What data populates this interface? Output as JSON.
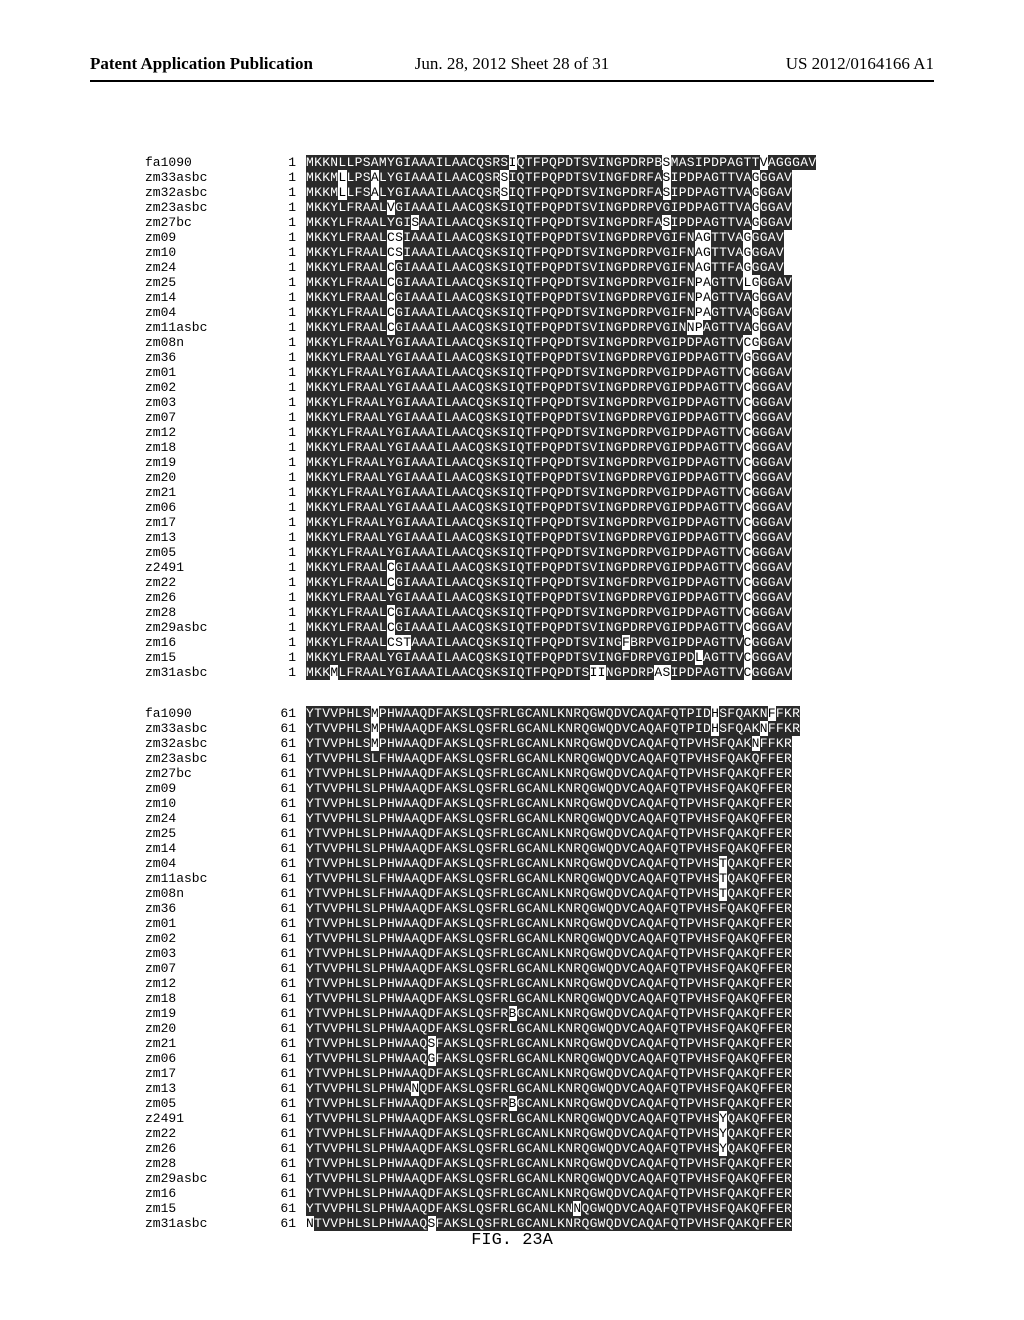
{
  "header": {
    "left": "Patent Application Publication",
    "center": "Jun. 28, 2012  Sheet 28 of 31",
    "right": "US 2012/0164166 A1"
  },
  "figure_label": "FIG. 23A",
  "alignment": {
    "font": "Courier New",
    "fontsize_pt": 10,
    "highlight_bg": "#2a2a2a",
    "highlight_fg": "#ffffff",
    "normal_bg": "#ffffff",
    "normal_fg": "#000000",
    "blocks": [
      {
        "start": 1,
        "rows": [
          {
            "id": "fa1090",
            "pos": 1,
            "seq": "MKKNLLPSAMYGIAAAILAACQSRSIQTFPQPDTSVINGPDRPBSMASIPDPAGTTVAGGGAV",
            "mask": "1111111111111111111111111011111111111111111101111111111101111"
          },
          {
            "id": "zm33asbc",
            "pos": 1,
            "seq": "MKKMLLPSALYGIAAAILAACQSRSIQTFPQPDTSVINGFDRFASIPDPAGTTVAGGGAV",
            "mask": "111101110111111111111111011111111111111111110111111111101111"
          },
          {
            "id": "zm32asbc",
            "pos": 1,
            "seq": "MKKMLLFSALYGIAAAILAACQSRSIQTFPQPDTSVINGPDRFASIPDPAGTTVAGGGAV",
            "mask": "111101110111111111111111011111111111111111110111111111101111"
          },
          {
            "id": "zm23asbc",
            "pos": 1,
            "seq": "MKKYLFRAALVGIAAAILAACQSKSIQTFPQPDTSVINGPDRPVGIPDPAGTTVAGGGAV",
            "mask": "111111111101111111111111111111111111111111111111111111101111"
          },
          {
            "id": "zm27bc",
            "pos": 1,
            "seq": "MKKYLFRAALYGISAAILAACQSKSIQTFPQPDTSVINGPDRFASIPDPAGTTVAGGGAV",
            "mask": "111111111111101111111111111111111111111111110111111111101111"
          },
          {
            "id": "zm09",
            "pos": 1,
            "seq": "MKKYLFRAALCSIAAAILAACQSKSIQTFPQPDTSVINGPDRPVGIFNAGTTVAGGGAV",
            "mask": "11111111110011111111111111111111111111111111111100111101111"
          },
          {
            "id": "zm10",
            "pos": 1,
            "seq": "MKKYLFRAALCSIAAAILAACQSKSIQTFPQPDTSVINGPDRPVGIFNAGTTVAGGGAV",
            "mask": "11111111110011111111111111111111111111111111111100111101111"
          },
          {
            "id": "zm24",
            "pos": 1,
            "seq": "MKKYLFRAALCGIAAAILAACQSKSIQTFPQPDTSVINGPDRPVGIFNAGTTFAGGGAV",
            "mask": "11111111110111111111111111111111111111111111111100111101111"
          },
          {
            "id": "zm25",
            "pos": 1,
            "seq": "MKKYLFRAALCGIAAAILAACQSKSIQTFPQPDTSVINGPDRPVGIFNPAGTTVLGGGAV",
            "mask": "111111111101111111111111111111111111111111111111001111001111"
          },
          {
            "id": "zm14",
            "pos": 1,
            "seq": "MKKYLFRAALCGIAAAILAACQSKSIQTFPQPDTSVINGPDRPVGIFNPAGTTVAGGGAV",
            "mask": "111111111101111111111111111111111111111111111111001111101111"
          },
          {
            "id": "zm04",
            "pos": 1,
            "seq": "MKKYLFRAALCGIAAAILAACQSKSIQTFPQPDTSVINGPDRPVGIFNPAGTTVAGGGAV",
            "mask": "111111111101111111111111111111111111111111111111001111101111"
          },
          {
            "id": "zm11asbc",
            "pos": 1,
            "seq": "MKKYLFRAALCGIAAAILAACQSKSIQTFPQPDTSVINGPDRPVGINNPAGTTVAGGGAV",
            "mask": "111111111101111111111111111111111111111111111110011111101111"
          },
          {
            "id": "zm08n",
            "pos": 1,
            "seq": "MKKYLFRAALYGIAAAILAACQSKSIQTFPQPDTSVINGPDRPVGIPDPAGTTVCGGGAV",
            "mask": "111111111111111111111111111111111111111111111111111111001111"
          },
          {
            "id": "zm36",
            "pos": 1,
            "seq": "MKKYLFRAALYGIAAAILAACQSKSIQTFPQPDTSVINGPDRPVGIPDPAGTTVGGGGAV",
            "mask": "111111111111111111111111111111111111111111111111111111011111"
          },
          {
            "id": "zm01",
            "pos": 1,
            "seq": "MKKYLFRAALYGIAAAILAACQSKSIQTFPQPDTSVINGPDRPVGIPDPAGTTVCGGGAV",
            "mask": "111111111111111111111111111111111111111111111111111111011111"
          },
          {
            "id": "zm02",
            "pos": 1,
            "seq": "MKKYLFRAALYGIAAAILAACQSKSIQTFPQPDTSVINGPDRPVGIPDPAGTTVCGGGAV",
            "mask": "111111111111111111111111111111111111111111111111111111011111"
          },
          {
            "id": "zm03",
            "pos": 1,
            "seq": "MKKYLFRAALYGIAAAILAACQSKSIQTFPQPDTSVINGPDRPVGIPDPAGTTVCGGGAV",
            "mask": "111111111111111111111111111111111111111111111111111111011111"
          },
          {
            "id": "zm07",
            "pos": 1,
            "seq": "MKKYLFRAALYGIAAAILAACQSKSIQTFPQPDTSVINGPDRPVGIPDPAGTTVCGGGAV",
            "mask": "111111111111111111111111111111111111111111111111111111011111"
          },
          {
            "id": "zm12",
            "pos": 1,
            "seq": "MKKYLFRAALYGIAAAILAACQSKSIQTFPQPDTSVINGPDRPVGIPDPAGTTVCGGGAV",
            "mask": "111111111111111111111111111111111111111111111111111111011111"
          },
          {
            "id": "zm18",
            "pos": 1,
            "seq": "MKKYLFRAALYGIAAAILAACQSKSIQTFPQPDTSVINGPDRPVGIPDPAGTTVCGGGAV",
            "mask": "111111111111111111111111111111111111111111111111111111011111"
          },
          {
            "id": "zm19",
            "pos": 1,
            "seq": "MKKYLFRAALYGIAAAILAACQSKSIQTFPQPDTSVINGPDRPVGIPDPAGTTVCGGGAV",
            "mask": "111111111111111111111111111111111111111111111111111111011111"
          },
          {
            "id": "zm20",
            "pos": 1,
            "seq": "MKKYLFRAALYGIAAAILAACQSKSIQTFPQPDTSVINGPDRPVGIPDPAGTTVCGGGAV",
            "mask": "111111111111111111111111111111111111111111111111111111011111"
          },
          {
            "id": "zm21",
            "pos": 1,
            "seq": "MKKYLFRAALYGIAAAILAACQSKSIQTFPQPDTSVINGPDRPVGIPDPAGTTVCGGGAV",
            "mask": "111111111111111111111111111111111111111111111111111111011111"
          },
          {
            "id": "zm06",
            "pos": 1,
            "seq": "MKKYLFRAALYGIAAAILAACQSKSIQTFPQPDTSVINGPDRPVGIPDPAGTTVCGGGAV",
            "mask": "111111111111111111111111111111111111111111111111111111011111"
          },
          {
            "id": "zm17",
            "pos": 1,
            "seq": "MKKYLFRAALYGIAAAILAACQSKSIQTFPQPDTSVINGPDRPVGIPDPAGTTVCGGGAV",
            "mask": "111111111111111111111111111111111111111111111111111111011111"
          },
          {
            "id": "zm13",
            "pos": 1,
            "seq": "MKKYLFRAALYGIAAAILAACQSKSIQTFPQPDTSVINGPDRPVGIPDPAGTTVCGGGAV",
            "mask": "111111111111111111111111111111111111111111111111111111011111"
          },
          {
            "id": "zm05",
            "pos": 1,
            "seq": "MKKYLFRAALYGIAAAILAACQSKSIQTFPQPDTSVINGPDRPVGIPDPAGTTVCGGGAV",
            "mask": "111111111111111111111111111111111111111111111111111111011111"
          },
          {
            "id": "z2491",
            "pos": 1,
            "seq": "MKKYLFRAALCGIAAAILAACQSKSIQTFPQPDTSVINGPDRPVGIPDPAGTTVCGGGAV",
            "mask": "111111111101111111111111111111111111111111111111111111011111"
          },
          {
            "id": "zm22",
            "pos": 1,
            "seq": "MKKYLFRAALCGIAAAILAACQSKSIQTFPQPDTSVINGFDRPVGIPDPAGTTVCGGGAV",
            "mask": "111111111101111111111111111111111111111111111111111111011111"
          },
          {
            "id": "zm26",
            "pos": 1,
            "seq": "MKKYLFRAALYGIAAAILAACQSKSIQTFPQPDTSVINGPDRPVGIPDPAGTTVCGGGAV",
            "mask": "111111111111111111111111111111111111111111111111111111011111"
          },
          {
            "id": "zm28",
            "pos": 1,
            "seq": "MKKYLFRAALCGIAAAILAACQSKSIQTFPQPDTSVINGPDRPVGIPDPAGTTVCGGGAV",
            "mask": "111111111101111111111111111111111111111111111111111111011111"
          },
          {
            "id": "zm29asbc",
            "pos": 1,
            "seq": "MKKYLFRAALCGIAAAILAACQSKSIQTFPQPDTSVINGPDRPVGIPDPAGTTVCGGGAV",
            "mask": "111111111101111111111111111111111111111111111111111111011111"
          },
          {
            "id": "zm16",
            "pos": 1,
            "seq": "MKKYLFRAALCSTAAAILAACQSKSIQTFPQPDTSVINGFBRPVGIPDPAGTTVCGGGAV",
            "mask": "111111111100011111111111111111111111111011111111111111011111"
          },
          {
            "id": "zm15",
            "pos": 1,
            "seq": "MKKYLFRAALYGIAAAILAACQSKSIQTFPQPDTSVINGFDRPVGIPDLAGTTVCGGGAV",
            "mask": "111111111111111111111111111111111111111111111111011111011111"
          },
          {
            "id": "zm31asbc",
            "pos": 1,
            "seq": "MKKMLFRAALYGIAAAILAACQSKSIQTFPQPDTSIINGPDRPASIPDPAGTTVCGGGAV",
            "mask": "111011111111111111111111111111111110011111100111111111011111"
          }
        ]
      },
      {
        "start": 61,
        "rows": [
          {
            "id": "fa1090",
            "pos": 61,
            "seq": "YTVVPHLSMPHWAAQDFAKSLQSFRLGCANLKNRQGWQDVCAQAFQTPIDHSFQAKNFFKR",
            "mask": "1111111101111111111111111111111111111111111111111101111110111"
          },
          {
            "id": "zm33asbc",
            "pos": 61,
            "seq": "YTVVPHLSMPHWAAQDFAKSLQSFRLGCANLKNRQGWQDVCAQAFQTPIDHSFQAKNFFKR",
            "mask": "1111111101111111111111111111111111111111111111111101111101111"
          },
          {
            "id": "zm32asbc",
            "pos": 61,
            "seq": "YTVVPHLSMPHWAAQDFAKSLQSFRLGCANLKNRQGWQDVCAQAFQTPVHSFQAKNFFKR",
            "mask": "111111110111111111111111111111111111111111111111111111101111"
          },
          {
            "id": "zm23asbc",
            "pos": 61,
            "seq": "YTVVPHLSLFHWAAQDFAKSLQSFRLGCANLKNRQGWQDVCAQAFQTPVHSFQAKQFFER",
            "mask": "111111111111111111111111111111111111111111111111111111111111"
          },
          {
            "id": "zm27bc",
            "pos": 61,
            "seq": "YTVVPHLSLPHWAAQDFAKSLQSFRLGCANLKNRQGWQDVCAQAFQTPVHSFQAKQFFER",
            "mask": "111111111111111111111111111111111111111111111111111111111111"
          },
          {
            "id": "zm09",
            "pos": 61,
            "seq": "YTVVPHLSLPHWAAQDFAKSLQSFRLGCANLKNRQGWQDVCAQAFQTPVHSFQAKQFFER",
            "mask": "111111111111111111111111111111111111111111111111111111111111"
          },
          {
            "id": "zm10",
            "pos": 61,
            "seq": "YTVVPHLSLPHWAAQDFAKSLQSFRLGCANLKNRQGWQDVCAQAFQTPVHSFQAKQFFER",
            "mask": "111111111111111111111111111111111111111111111111111111111111"
          },
          {
            "id": "zm24",
            "pos": 61,
            "seq": "YTVVPHLSLPHWAAQDFAKSLQSFRLGCANLKNRQGWQDVCAQAFQTPVHSFQAKQFFER",
            "mask": "111111111111111111111111111111111111111111111111111111111111"
          },
          {
            "id": "zm25",
            "pos": 61,
            "seq": "YTVVPHLSLPHWAAQDFAKSLQSFRLGCANLKNRQGWQDVCAQAFQTPVHSFQAKQFFER",
            "mask": "111111111111111111111111111111111111111111111111111111111111"
          },
          {
            "id": "zm14",
            "pos": 61,
            "seq": "YTVVPHLSLPHWAAQDFAKSLQSFRLGCANLKNRQGWQDVCAQAFQTPVHSFQAKQFFER",
            "mask": "111111111111111111111111111111111111111111111111111111111111"
          },
          {
            "id": "zm04",
            "pos": 61,
            "seq": "YTVVPHLSLPHWAAQDFAKSLQSFRLGCANLKNRQGWQDVCAQAFQTPVHSTQAKQFFER",
            "mask": "111111111111111111111111111111111111111111111111111011111111"
          },
          {
            "id": "zm11asbc",
            "pos": 61,
            "seq": "YTVVPHLSLFHWAAQDFAKSLQSFRLGCANLKNRQGWQDVCAQAFQTPVHSTQAKQFFER",
            "mask": "111111111111111111111111111111111111111111111111111011111111"
          },
          {
            "id": "zm08n",
            "pos": 61,
            "seq": "YTVVPHLSLFHWAAQDFAKSLQSFRLGCANLKNRQGWQDVCAQAFQTPVHSTQAKQFFER",
            "mask": "111111111111111111111111111111111111111111111111111011111111"
          },
          {
            "id": "zm36",
            "pos": 61,
            "seq": "YTVVPHLSLPHWAAQDFAKSLQSFRLGCANLKNRQGWQDVCAQAFQTPVHSFQAKQFFER",
            "mask": "111111111111111111111111111111111111111111111111111111111111"
          },
          {
            "id": "zm01",
            "pos": 61,
            "seq": "YTVVPHLSLPHWAAQDFAKSLQSFRLGCANLKNRQGWQDVCAQAFQTPVHSFQAKQFFER",
            "mask": "111111111111111111111111111111111111111111111111111111111111"
          },
          {
            "id": "zm02",
            "pos": 61,
            "seq": "YTVVPHLSLPHWAAQDFAKSLQSFRLGCANLKNRQGWQDVCAQAFQTPVHSFQAKQFFER",
            "mask": "111111111111111111111111111111111111111111111111111111111111"
          },
          {
            "id": "zm03",
            "pos": 61,
            "seq": "YTVVPHLSLPHWAAQDFAKSLQSFRLGCANLKNRQGWQDVCAQAFQTPVHSFQAKQFFER",
            "mask": "111111111111111111111111111111111111111111111111111111111111"
          },
          {
            "id": "zm07",
            "pos": 61,
            "seq": "YTVVPHLSLPHWAAQDFAKSLQSFRLGCANLKNRQGWQDVCAQAFQTPVHSFQAKQFFER",
            "mask": "111111111111111111111111111111111111111111111111111111111111"
          },
          {
            "id": "zm12",
            "pos": 61,
            "seq": "YTVVPHLSLPHWAAQDFAKSLQSFRLGCANLKNRQGWQDVCAQAFQTPVHSFQAKQFFER",
            "mask": "111111111111111111111111111111111111111111111111111111111111"
          },
          {
            "id": "zm18",
            "pos": 61,
            "seq": "YTVVPHLSLPHWAAQDFAKSLQSFRLGCANLKNRQGWQDVCAQAFQTPVHSFQAKQFFER",
            "mask": "111111111111111111111111111111111111111111111111111111111111"
          },
          {
            "id": "zm19",
            "pos": 61,
            "seq": "YTVVPHLSLPHWAAQDFAKSLQSFRBGCANLKNRQGWQDVCAQAFQTPVHSFQAKQFFER",
            "mask": "111111111111111111111111101111111111111111111111111111111111"
          },
          {
            "id": "zm20",
            "pos": 61,
            "seq": "YTVVPHLSLPHWAAQDFAKSLQSFRLGCANLKNRQGWQDVCAQAFQTPVHSFQAKQFFER",
            "mask": "111111111111111111111111111111111111111111111111111111111111"
          },
          {
            "id": "zm21",
            "pos": 61,
            "seq": "YTVVPHLSLPHWAAQSFAKSLQSFRLGCANLKNRQGWQDVCAQAFQTPVHSFQAKQFFER",
            "mask": "111111111111111011111111111111111111111111111111111111111111"
          },
          {
            "id": "zm06",
            "pos": 61,
            "seq": "YTVVPHLSLPHWAAQGFAKSLQSFRLGCANLKNRQGWQDVCAQAFQTPVHSFQAKQFFER",
            "mask": "111111111111111011111111111111111111111111111111111111111111"
          },
          {
            "id": "zm17",
            "pos": 61,
            "seq": "YTVVPHLSLPHWAAQDFAKSLQSFRLGCANLKNRQGWQDVCAQAFQTPVHSFQAKQFFER",
            "mask": "111111111111111111111111111111111111111111111111111111111111"
          },
          {
            "id": "zm13",
            "pos": 61,
            "seq": "YTVVPHLSLPHWANQDFAKSLQSFRLGCANLKNRQGWQDVCAQAFQTPVHSFQAKQFFER",
            "mask": "111111111111101111111111111111111111111111111111111111111111"
          },
          {
            "id": "zm05",
            "pos": 61,
            "seq": "YTVVPHLSLFHWAAQDFAKSLQSFRBGCANLKNRQGWQDVCAQAFQTPVHSFQAKQFFER",
            "mask": "111111111111111111111111101111111111111111111111111111111111"
          },
          {
            "id": "z2491",
            "pos": 61,
            "seq": "YTVVPHLSLPHWAAQDFAKSLQSFRLGCANLKNRQGWQDVCAQAFQTPVHSYQAKQFFER",
            "mask": "111111111111111111111111111111111111111111111111111011111111"
          },
          {
            "id": "zm22",
            "pos": 61,
            "seq": "YTVVPHLSLFHWAAQDFAKSLQSFRLGCANLKNRQGWQDVCAQAFQTPVHSYQAKQFFER",
            "mask": "111111111111111111111111111111111111111111111111111011111111"
          },
          {
            "id": "zm26",
            "pos": 61,
            "seq": "YTVVPHLSLPHWAAQDFAKSLQSFRLGCANLKNRQGWQDVCAQAFQTPVHSYQAKQFFER",
            "mask": "111111111111111111111111111111111111111111111111111011111111"
          },
          {
            "id": "zm28",
            "pos": 61,
            "seq": "YTVVPHLSLPHWAAQDFAKSLQSFRLGCANLKNRQGWQDVCAQAFQTPVHSFQAKQFFER",
            "mask": "111111111111111111111111111111111111111111111111111111111111"
          },
          {
            "id": "zm29asbc",
            "pos": 61,
            "seq": "YTVVPHLSLPHWAAQDFAKSLQSFRLGCANLKNRQGWQDVCAQAFQTPVHSFQAKQFFER",
            "mask": "111111111111111111111111111111111111111111111111111111111111"
          },
          {
            "id": "zm16",
            "pos": 61,
            "seq": "YTVVPHLSLPHWAAQDFAKSLQSFRLGCANLKNRQGWQDVCAQAFQTPVHSFQAKQFFER",
            "mask": "111111111111111111111111111111111111111111111111111111111111"
          },
          {
            "id": "zm15",
            "pos": 61,
            "seq": "YTVVPHLSLPHWAAQDFAKSLQSFRLGCANLKNNQGWQDVCAQAFQTPVHSFQAKQFFER",
            "mask": "111111111111111111111111111111111011111111111111111111111111"
          },
          {
            "id": "zm31asbc",
            "pos": 61,
            "seq": "NTVVPHLSLPHWAAQSFAKSLQSFRLGCANLKNRQGWQDVCAQAFQTPVHSFQAKQFFER",
            "mask": "011111111111111011111111111111111111111111111111111111111111"
          }
        ]
      }
    ]
  }
}
